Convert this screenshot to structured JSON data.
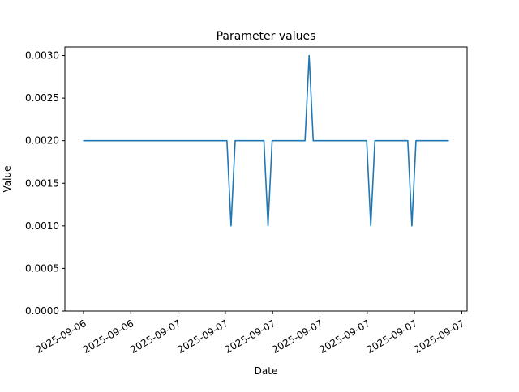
{
  "chart_data": {
    "type": "line",
    "title": "Parameter values",
    "xlabel": "Date",
    "ylabel": "Value",
    "ylim": [
      0,
      0.0031
    ],
    "yticks": [
      {
        "value": 0.0,
        "label": "0.0000"
      },
      {
        "value": 0.0005,
        "label": "0.0005"
      },
      {
        "value": 0.001,
        "label": "0.0010"
      },
      {
        "value": 0.0015,
        "label": "0.0015"
      },
      {
        "value": 0.002,
        "label": "0.0020"
      },
      {
        "value": 0.0025,
        "label": "0.0025"
      },
      {
        "value": 0.003,
        "label": "0.0030"
      }
    ],
    "xtick_labels": [
      "2025-09-06",
      "2025-09-06",
      "2025-09-07",
      "2025-09-07",
      "2025-09-07",
      "2025-09-07",
      "2025-09-07",
      "2025-09-07",
      "2025-09-07"
    ],
    "grid": false,
    "legend": "none",
    "series": [
      {
        "color": "#1f77b4",
        "values": [
          0.002,
          0.002,
          0.002,
          0.002,
          0.002,
          0.002,
          0.002,
          0.002,
          0.002,
          0.002,
          0.002,
          0.002,
          0.002,
          0.002,
          0.002,
          0.002,
          0.002,
          0.002,
          0.002,
          0.002,
          0.002,
          0.002,
          0.002,
          0.002,
          0.002,
          0.002,
          0.002,
          0.002,
          0.002,
          0.002,
          0.002,
          0.002,
          0.002,
          0.002,
          0.002,
          0.002,
          0.001,
          0.002,
          0.002,
          0.002,
          0.002,
          0.002,
          0.002,
          0.002,
          0.002,
          0.001,
          0.002,
          0.002,
          0.002,
          0.002,
          0.002,
          0.002,
          0.002,
          0.002,
          0.002,
          0.003,
          0.002,
          0.002,
          0.002,
          0.002,
          0.002,
          0.002,
          0.002,
          0.002,
          0.002,
          0.002,
          0.002,
          0.002,
          0.002,
          0.002,
          0.001,
          0.002,
          0.002,
          0.002,
          0.002,
          0.002,
          0.002,
          0.002,
          0.002,
          0.002,
          0.001,
          0.002,
          0.002,
          0.002,
          0.002,
          0.002,
          0.002,
          0.002,
          0.002,
          0.002
        ]
      }
    ]
  }
}
